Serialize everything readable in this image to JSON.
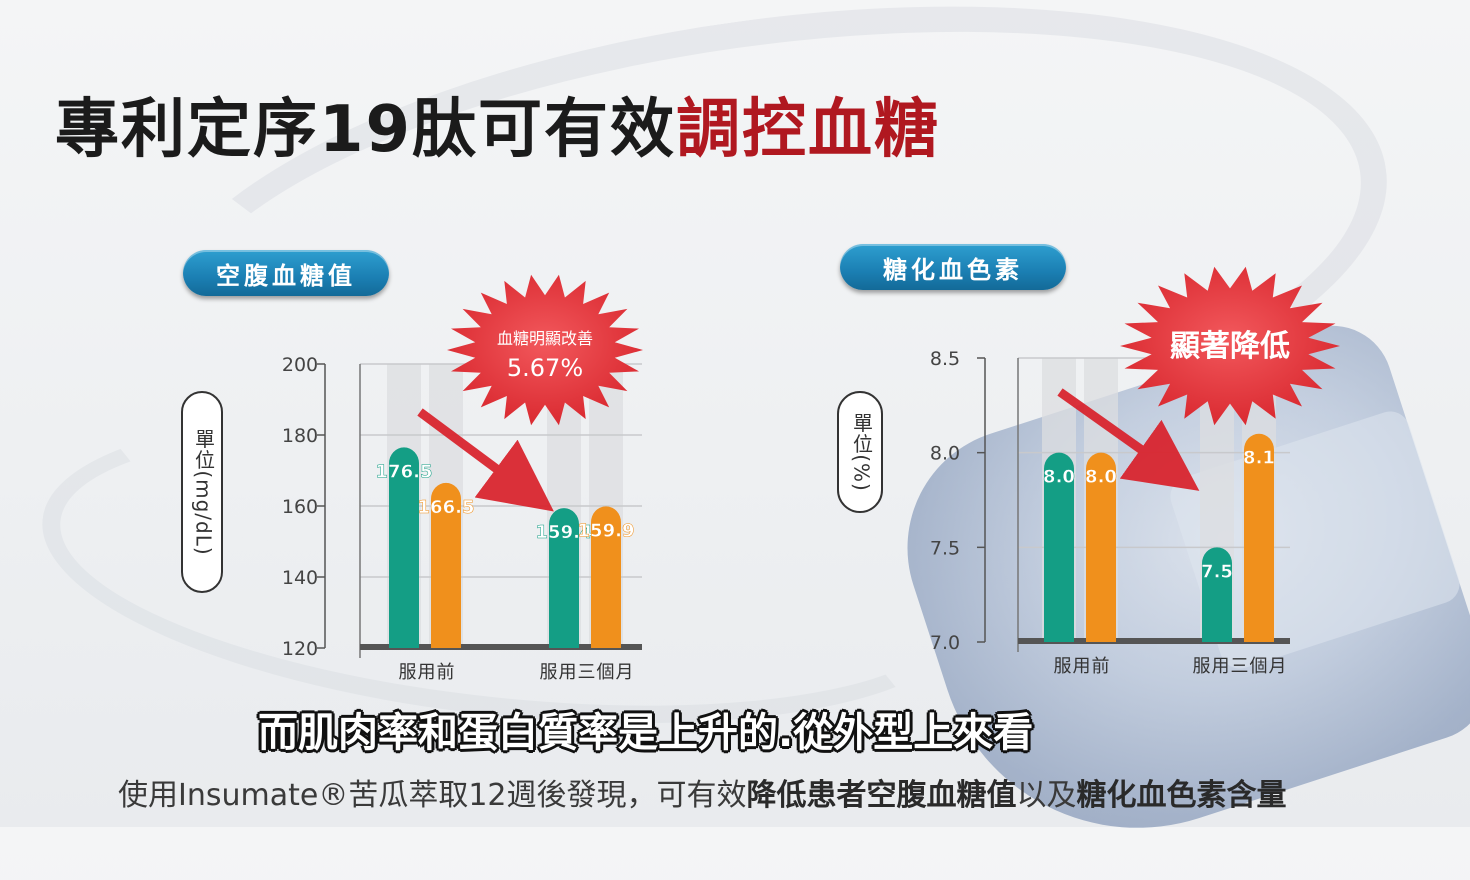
{
  "title": {
    "part1": "專利定序19肽可有效",
    "part2": "調控血糖"
  },
  "colors": {
    "teal": "#149e85",
    "orange": "#f0901c",
    "title_red": "#b01820",
    "pill_blue": "#1b7fb3",
    "burst_red": "#e8343a",
    "arrow_red": "#d9202a"
  },
  "chart_data": [
    {
      "type": "bar",
      "title": "空腹血糖值",
      "ylabel": "單位(mg/dL)",
      "categories": [
        "服用前",
        "服用三個月"
      ],
      "series": [
        {
          "color": "#149e85",
          "values": [
            176.5,
            159.4
          ],
          "labels": [
            "176.5",
            "159.4"
          ]
        },
        {
          "color": "#f0901c",
          "values": [
            166.5,
            159.9
          ],
          "labels": [
            "166.5",
            "159.9"
          ]
        }
      ],
      "ylim": [
        120,
        200
      ],
      "yticks": [
        "120",
        "140",
        "160",
        "180",
        "200"
      ],
      "grid": true,
      "annotation": {
        "line1": "血糖明顯改善",
        "line2": "5.67%"
      }
    },
    {
      "type": "bar",
      "title": "糖化血色素",
      "ylabel": "單位(%)",
      "categories": [
        "服用前",
        "服用三個月"
      ],
      "series": [
        {
          "color": "#149e85",
          "values": [
            8.0,
            7.5
          ],
          "labels": [
            "8.0",
            "7.5"
          ]
        },
        {
          "color": "#f0901c",
          "values": [
            8.0,
            8.1
          ],
          "labels": [
            "8.0",
            "8.1"
          ]
        }
      ],
      "ylim": [
        7.0,
        8.5
      ],
      "yticks": [
        "7.0",
        "7.5",
        "8.0",
        "8.5"
      ],
      "grid": true,
      "annotation": {
        "line1": "顯著降低",
        "line2": ""
      }
    }
  ],
  "subtitle": "而肌肉率和蛋白質率是上升的.從外型上來看",
  "footer": {
    "prefix": "使用Insumate®苦瓜萃取12週後發現，可有效",
    "bold1": "降低患者空腹血糖值",
    "mid": "以及",
    "bold2": "糖化血色素含量"
  }
}
